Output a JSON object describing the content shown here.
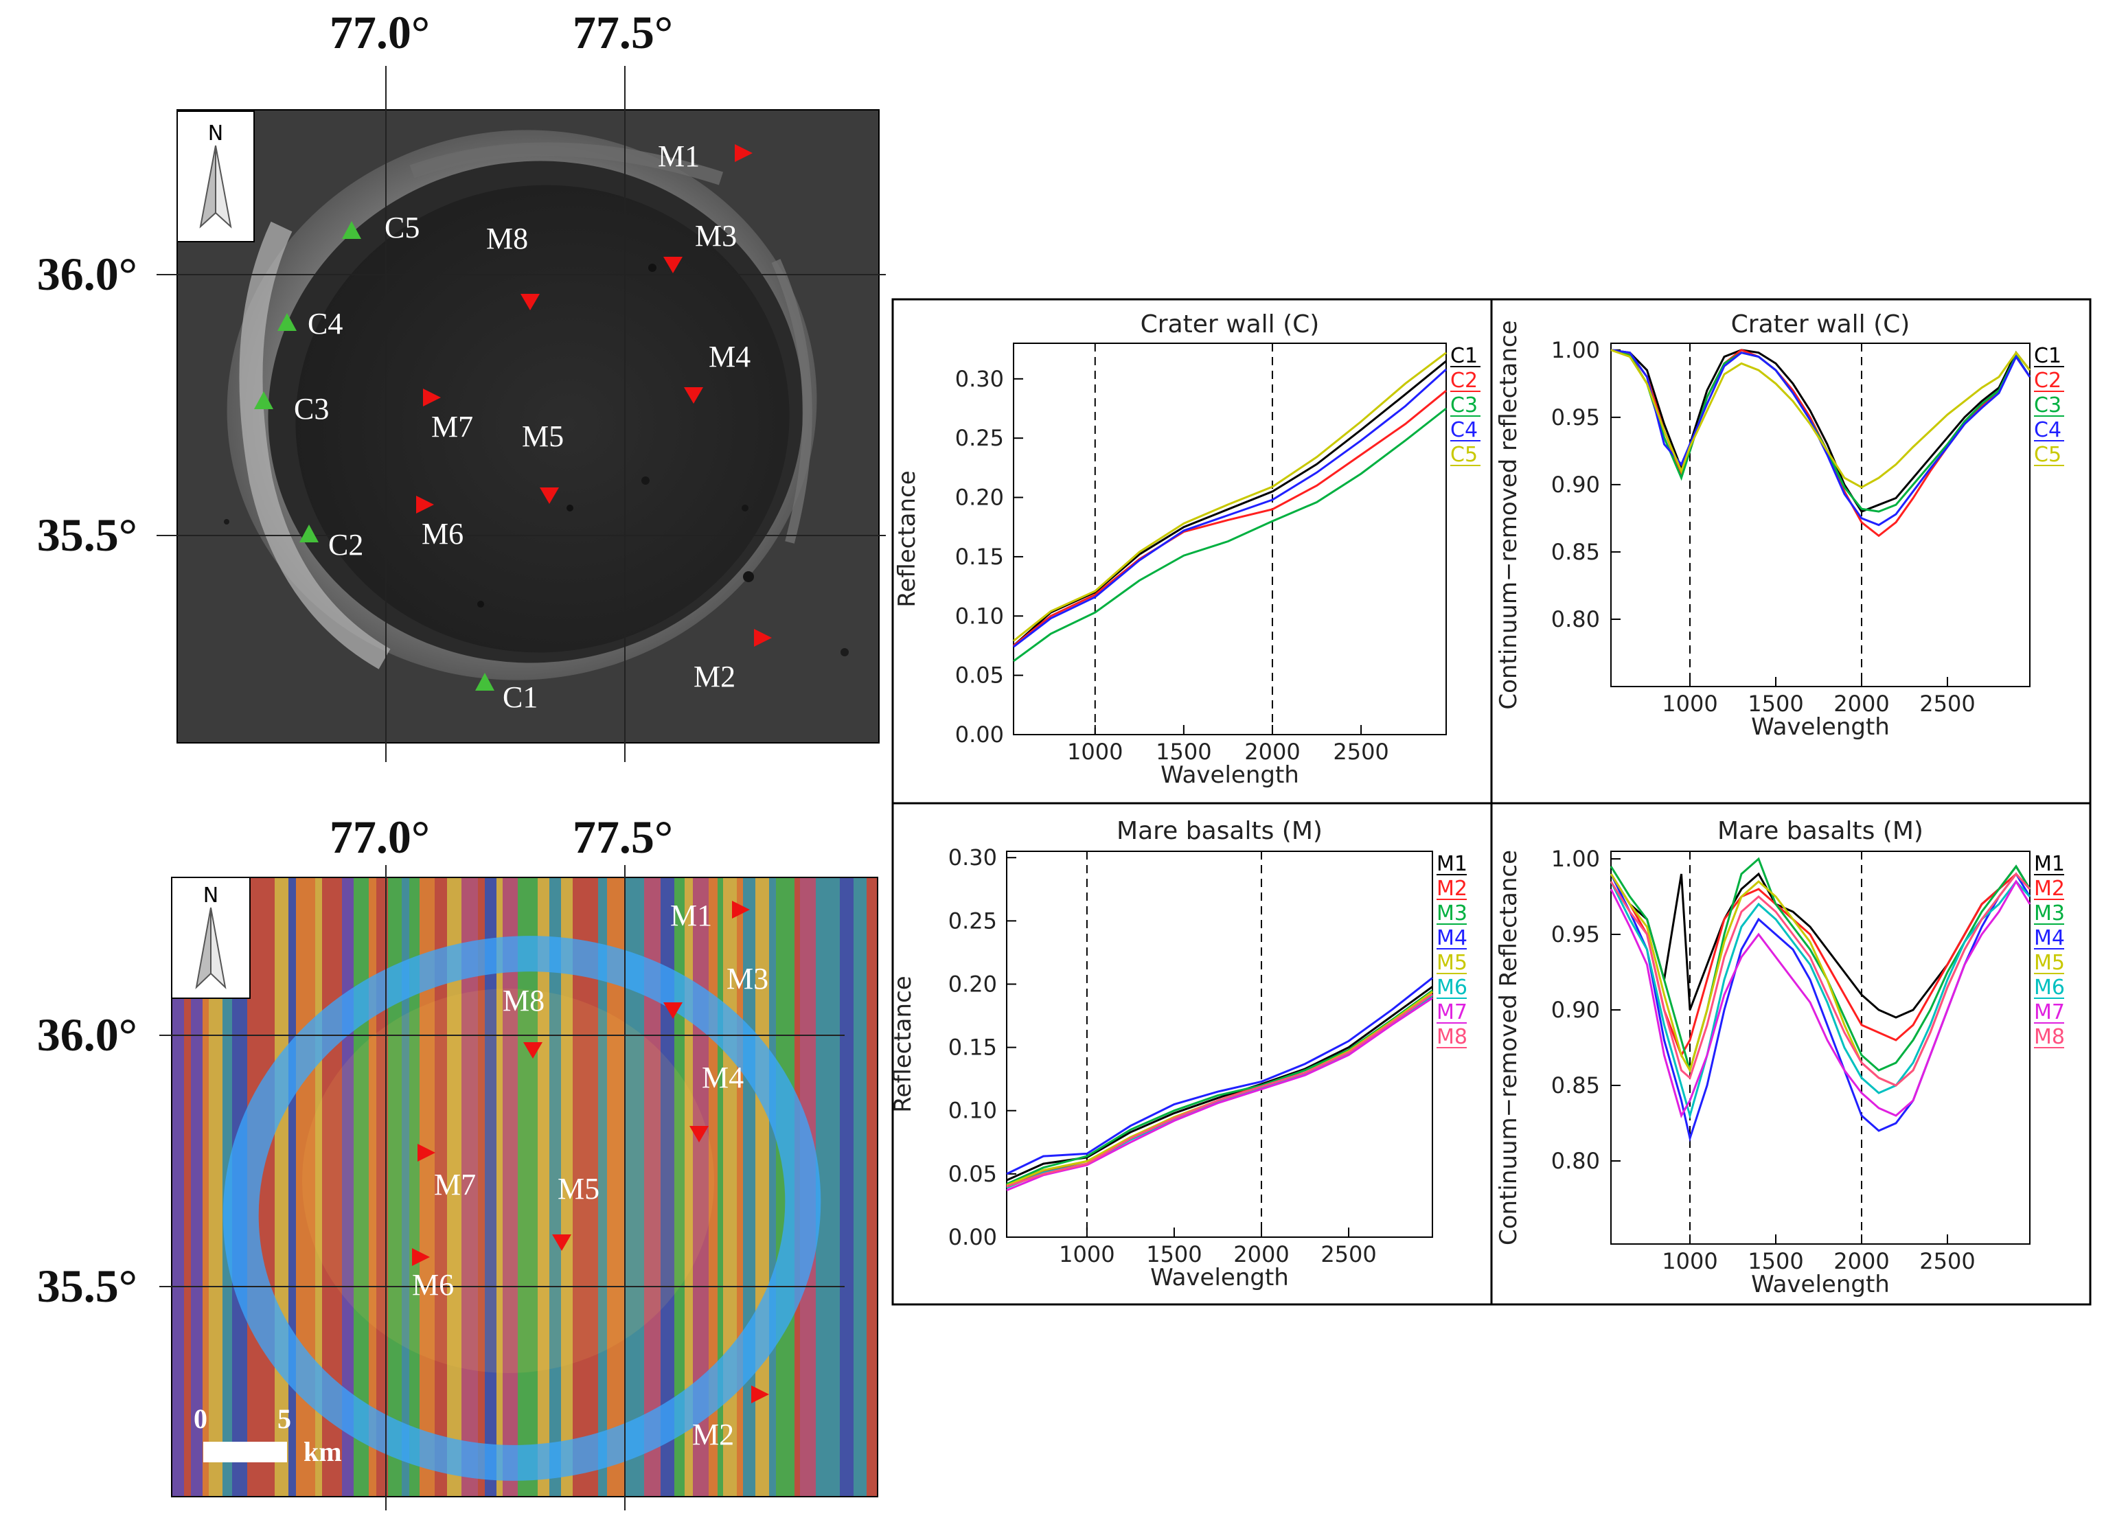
{
  "lon_labels": [
    "77.0°",
    "77.5°"
  ],
  "lat_labels": [
    "36.0°",
    "35.5°"
  ],
  "north_label": "N",
  "scale_bar": {
    "tick_0": "0",
    "tick_5": "5",
    "unit": "km"
  },
  "map_points": {
    "crater_wall": [
      "C1",
      "C2",
      "C3",
      "C4",
      "C5"
    ],
    "mare": [
      "M1",
      "M2",
      "M3",
      "M4",
      "M5",
      "M6",
      "M7",
      "M8"
    ]
  },
  "colors": {
    "C1": "#000000",
    "C2": "#ff2020",
    "C3": "#00b040",
    "C4": "#2020ff",
    "C5": "#c8c800",
    "M1": "#000000",
    "M2": "#ff2020",
    "M3": "#00b040",
    "M4": "#2020ff",
    "M5": "#c8c800",
    "M6": "#00c0c0",
    "M7": "#e020e0",
    "M8": "#ff5080",
    "crater_marker": "#44c03a",
    "mare_marker": "#ee1111"
  },
  "chart_data": [
    {
      "type": "line",
      "title": "Crater wall (C)",
      "xlabel": "Wavelength",
      "ylabel": "Reflectance",
      "xlim": [
        540,
        2980
      ],
      "ylim": [
        0,
        0.33
      ],
      "xticks": [
        1000,
        1500,
        2000,
        2500
      ],
      "yticks": [
        0.0,
        0.05,
        0.1,
        0.15,
        0.2,
        0.25,
        0.3
      ],
      "ytick_labels": [
        "0.00",
        "0.05",
        "0.10",
        "0.15",
        "0.20",
        "0.25",
        "0.30"
      ],
      "vlines": [
        1000,
        2000
      ],
      "x": [
        540,
        750,
        1000,
        1250,
        1500,
        1750,
        2000,
        2250,
        2500,
        2750,
        2980
      ],
      "series": [
        {
          "name": "C1",
          "values": [
            0.075,
            0.103,
            0.12,
            0.152,
            0.175,
            0.19,
            0.205,
            0.228,
            0.257,
            0.287,
            0.315
          ]
        },
        {
          "name": "C2",
          "values": [
            0.075,
            0.1,
            0.118,
            0.148,
            0.171,
            0.181,
            0.19,
            0.21,
            0.236,
            0.262,
            0.29
          ]
        },
        {
          "name": "C3",
          "values": [
            0.062,
            0.085,
            0.103,
            0.13,
            0.151,
            0.163,
            0.18,
            0.196,
            0.22,
            0.248,
            0.275
          ]
        },
        {
          "name": "C4",
          "values": [
            0.074,
            0.098,
            0.116,
            0.147,
            0.172,
            0.185,
            0.198,
            0.221,
            0.248,
            0.277,
            0.308
          ]
        },
        {
          "name": "C5",
          "values": [
            0.079,
            0.104,
            0.121,
            0.154,
            0.178,
            0.194,
            0.209,
            0.234,
            0.264,
            0.296,
            0.322
          ]
        }
      ]
    },
    {
      "type": "line",
      "title": "Crater wall (C)",
      "xlabel": "Wavelength",
      "ylabel": "Continuum−removed reflectance",
      "xlim": [
        540,
        2980
      ],
      "ylim": [
        0.75,
        1.005
      ],
      "xticks": [
        1000,
        1500,
        2000,
        2500
      ],
      "yticks": [
        0.8,
        0.85,
        0.9,
        0.95,
        1.0
      ],
      "ytick_labels": [
        "0.80",
        "0.85",
        "0.90",
        "0.95",
        "1.00"
      ],
      "vlines": [
        1000,
        2000
      ],
      "x": [
        540,
        650,
        750,
        850,
        950,
        1000,
        1100,
        1200,
        1300,
        1400,
        1500,
        1600,
        1700,
        1800,
        1900,
        2000,
        2100,
        2200,
        2300,
        2400,
        2500,
        2600,
        2700,
        2800,
        2900,
        2980
      ],
      "series": [
        {
          "name": "C1",
          "values": [
            1.0,
            0.998,
            0.985,
            0.945,
            0.912,
            0.93,
            0.97,
            0.995,
            1.0,
            0.998,
            0.99,
            0.975,
            0.955,
            0.93,
            0.9,
            0.88,
            0.885,
            0.89,
            0.905,
            0.92,
            0.935,
            0.95,
            0.962,
            0.972,
            0.998,
            0.985
          ]
        },
        {
          "name": "C2",
          "values": [
            1.0,
            0.997,
            0.98,
            0.94,
            0.908,
            0.925,
            0.965,
            0.99,
            1.0,
            0.995,
            0.985,
            0.97,
            0.95,
            0.925,
            0.895,
            0.872,
            0.862,
            0.872,
            0.89,
            0.91,
            0.928,
            0.945,
            0.958,
            0.97,
            0.995,
            0.98
          ]
        },
        {
          "name": "C3",
          "values": [
            1.0,
            0.996,
            0.975,
            0.935,
            0.905,
            0.925,
            0.965,
            0.99,
            0.998,
            0.995,
            0.985,
            0.968,
            0.948,
            0.925,
            0.898,
            0.882,
            0.88,
            0.885,
            0.9,
            0.915,
            0.93,
            0.947,
            0.96,
            0.97,
            0.996,
            0.98
          ]
        },
        {
          "name": "C4",
          "values": [
            1.0,
            0.998,
            0.98,
            0.93,
            0.915,
            0.93,
            0.96,
            0.988,
            0.998,
            0.995,
            0.985,
            0.968,
            0.948,
            0.922,
            0.893,
            0.875,
            0.87,
            0.878,
            0.895,
            0.912,
            0.928,
            0.945,
            0.957,
            0.968,
            0.995,
            0.98
          ]
        },
        {
          "name": "C5",
          "values": [
            1.0,
            0.995,
            0.975,
            0.94,
            0.91,
            0.928,
            0.955,
            0.982,
            0.99,
            0.985,
            0.975,
            0.962,
            0.945,
            0.925,
            0.905,
            0.898,
            0.905,
            0.915,
            0.928,
            0.94,
            0.952,
            0.962,
            0.972,
            0.98,
            0.998,
            0.985
          ]
        }
      ]
    },
    {
      "type": "line",
      "title": "Mare basalts (M)",
      "xlabel": "Wavelength",
      "ylabel": "Reflectance",
      "xlim": [
        540,
        2980
      ],
      "ylim": [
        0,
        0.305
      ],
      "xticks": [
        1000,
        1500,
        2000,
        2500
      ],
      "yticks": [
        0.0,
        0.05,
        0.1,
        0.15,
        0.2,
        0.25,
        0.3
      ],
      "ytick_labels": [
        "0.00",
        "0.05",
        "0.10",
        "0.15",
        "0.20",
        "0.25",
        "0.30"
      ],
      "vlines": [
        1000,
        2000
      ],
      "x": [
        540,
        750,
        1000,
        1250,
        1500,
        1750,
        2000,
        2250,
        2500,
        2750,
        2980
      ],
      "series": [
        {
          "name": "M1",
          "values": [
            0.045,
            0.058,
            0.063,
            0.083,
            0.098,
            0.11,
            0.121,
            0.133,
            0.15,
            0.175,
            0.198
          ]
        },
        {
          "name": "M2",
          "values": [
            0.04,
            0.052,
            0.06,
            0.078,
            0.094,
            0.108,
            0.12,
            0.13,
            0.147,
            0.17,
            0.19
          ]
        },
        {
          "name": "M3",
          "values": [
            0.042,
            0.055,
            0.064,
            0.085,
            0.1,
            0.112,
            0.12,
            0.132,
            0.148,
            0.172,
            0.195
          ]
        },
        {
          "name": "M4",
          "values": [
            0.05,
            0.064,
            0.066,
            0.088,
            0.105,
            0.115,
            0.123,
            0.137,
            0.155,
            0.18,
            0.205
          ]
        },
        {
          "name": "M5",
          "values": [
            0.041,
            0.053,
            0.06,
            0.079,
            0.095,
            0.108,
            0.119,
            0.13,
            0.147,
            0.171,
            0.194
          ]
        },
        {
          "name": "M6",
          "values": [
            0.039,
            0.051,
            0.058,
            0.077,
            0.093,
            0.107,
            0.118,
            0.129,
            0.145,
            0.169,
            0.191
          ]
        },
        {
          "name": "M7",
          "values": [
            0.037,
            0.049,
            0.057,
            0.075,
            0.092,
            0.106,
            0.117,
            0.128,
            0.144,
            0.168,
            0.189
          ]
        },
        {
          "name": "M8",
          "values": [
            0.04,
            0.05,
            0.058,
            0.078,
            0.094,
            0.108,
            0.119,
            0.13,
            0.146,
            0.17,
            0.192
          ]
        }
      ]
    },
    {
      "type": "line",
      "title": "Mare basalts (M)",
      "xlabel": "Wavelength",
      "ylabel": "Continuum−removed Reflectance",
      "xlim": [
        540,
        2980
      ],
      "ylim": [
        0.745,
        1.005
      ],
      "xticks": [
        1000,
        1500,
        2000,
        2500
      ],
      "yticks": [
        0.8,
        0.85,
        0.9,
        0.95,
        1.0
      ],
      "ytick_labels": [
        "0.80",
        "0.85",
        "0.90",
        "0.95",
        "1.00"
      ],
      "vlines": [
        1000,
        2000
      ],
      "x": [
        540,
        650,
        750,
        850,
        950,
        1000,
        1100,
        1200,
        1300,
        1400,
        1500,
        1600,
        1700,
        1800,
        1900,
        2000,
        2100,
        2200,
        2300,
        2400,
        2500,
        2600,
        2700,
        2800,
        2900,
        2980
      ],
      "series": [
        {
          "name": "M1",
          "values": [
            0.99,
            0.97,
            0.96,
            0.92,
            0.99,
            0.9,
            0.93,
            0.96,
            0.98,
            0.99,
            0.97,
            0.965,
            0.955,
            0.94,
            0.925,
            0.91,
            0.9,
            0.895,
            0.9,
            0.915,
            0.93,
            0.95,
            0.97,
            0.98,
            0.995,
            0.98
          ]
        },
        {
          "name": "M2",
          "values": [
            0.99,
            0.97,
            0.95,
            0.9,
            0.87,
            0.88,
            0.92,
            0.96,
            0.975,
            0.98,
            0.97,
            0.96,
            0.95,
            0.93,
            0.91,
            0.89,
            0.885,
            0.88,
            0.89,
            0.91,
            0.93,
            0.95,
            0.97,
            0.98,
            0.99,
            0.98
          ]
        },
        {
          "name": "M3",
          "values": [
            0.995,
            0.975,
            0.96,
            0.92,
            0.88,
            0.86,
            0.9,
            0.95,
            0.99,
            1.0,
            0.97,
            0.955,
            0.94,
            0.92,
            0.895,
            0.87,
            0.86,
            0.865,
            0.88,
            0.9,
            0.925,
            0.945,
            0.965,
            0.98,
            0.995,
            0.98
          ]
        },
        {
          "name": "M4",
          "values": [
            0.99,
            0.965,
            0.94,
            0.88,
            0.84,
            0.815,
            0.85,
            0.9,
            0.94,
            0.96,
            0.95,
            0.94,
            0.92,
            0.89,
            0.86,
            0.83,
            0.82,
            0.825,
            0.84,
            0.87,
            0.9,
            0.93,
            0.955,
            0.975,
            0.99,
            0.975
          ]
        },
        {
          "name": "M5",
          "values": [
            0.99,
            0.97,
            0.955,
            0.91,
            0.87,
            0.86,
            0.9,
            0.945,
            0.975,
            0.985,
            0.975,
            0.96,
            0.945,
            0.92,
            0.89,
            0.865,
            0.855,
            0.85,
            0.86,
            0.885,
            0.915,
            0.94,
            0.96,
            0.975,
            0.99,
            0.98
          ]
        },
        {
          "name": "M6",
          "values": [
            0.985,
            0.96,
            0.94,
            0.89,
            0.85,
            0.83,
            0.87,
            0.92,
            0.955,
            0.97,
            0.96,
            0.945,
            0.93,
            0.905,
            0.875,
            0.855,
            0.845,
            0.85,
            0.865,
            0.89,
            0.92,
            0.945,
            0.96,
            0.97,
            0.985,
            0.975
          ]
        },
        {
          "name": "M7",
          "values": [
            0.98,
            0.955,
            0.93,
            0.87,
            0.83,
            0.84,
            0.87,
            0.91,
            0.935,
            0.95,
            0.935,
            0.92,
            0.905,
            0.88,
            0.86,
            0.845,
            0.835,
            0.83,
            0.84,
            0.87,
            0.9,
            0.93,
            0.95,
            0.965,
            0.985,
            0.97
          ]
        },
        {
          "name": "M8",
          "values": [
            0.985,
            0.965,
            0.95,
            0.9,
            0.86,
            0.855,
            0.89,
            0.935,
            0.965,
            0.975,
            0.965,
            0.95,
            0.935,
            0.91,
            0.885,
            0.865,
            0.855,
            0.85,
            0.86,
            0.885,
            0.915,
            0.94,
            0.96,
            0.975,
            0.99,
            0.98
          ]
        }
      ]
    }
  ]
}
